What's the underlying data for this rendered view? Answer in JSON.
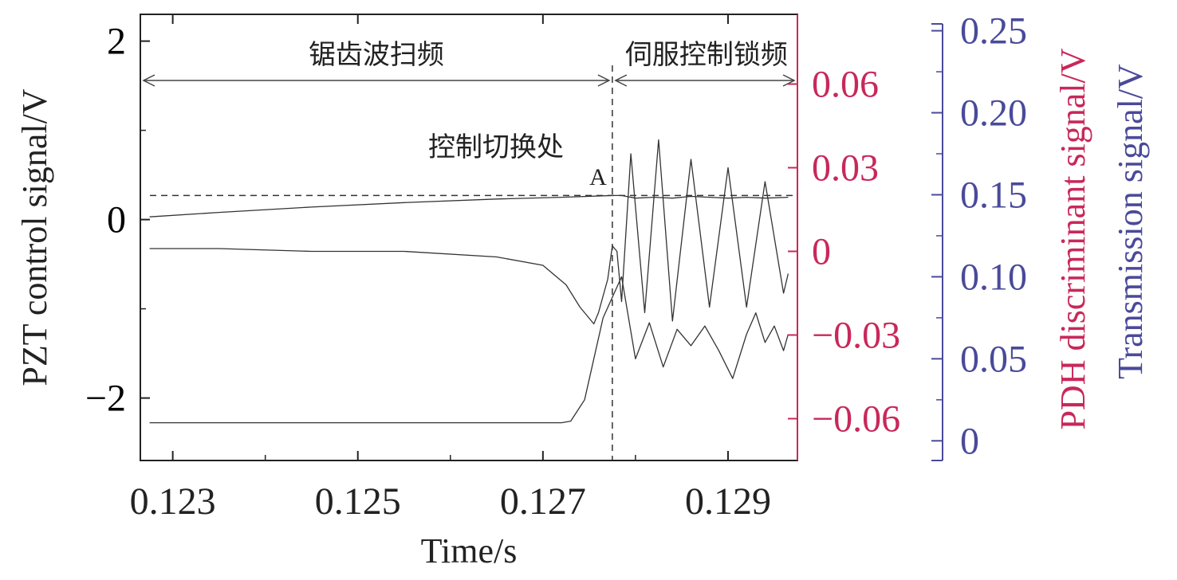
{
  "chart_data": {
    "type": "line",
    "xlabel": "Time/s",
    "x_ticks": [
      "0.123",
      "0.125",
      "0.127",
      "0.129"
    ],
    "x_tick_values": [
      0.123,
      0.125,
      0.127,
      0.129
    ],
    "xlim": [
      0.12265,
      0.12975
    ],
    "grid": false,
    "axes": [
      {
        "id": "left",
        "label": "PZT control signal/V",
        "color": "#000000",
        "ylim": [
          -2.7,
          2.3
        ],
        "ticks": [
          "2",
          "0",
          "−2"
        ],
        "tick_values": [
          2,
          0,
          -2
        ]
      },
      {
        "id": "right1",
        "label": "PDH discriminant signal/V",
        "color": "#c8285a",
        "ylim": [
          -0.075,
          0.085
        ],
        "ticks": [
          "0.06",
          "0.03",
          "0",
          "−0.03",
          "−0.06"
        ],
        "tick_values": [
          0.06,
          0.03,
          0,
          -0.03,
          -0.06
        ]
      },
      {
        "id": "right2",
        "label": "Transmission signal/V",
        "color": "#4a4a9a",
        "ylim": [
          -0.012,
          0.26
        ],
        "ticks": [
          "0.25",
          "0.20",
          "0.15",
          "0.10",
          "0.05",
          "0"
        ],
        "tick_values": [
          0.25,
          0.2,
          0.15,
          0.1,
          0.05,
          0
        ]
      }
    ],
    "series": [
      {
        "axis": "left",
        "color": "#333333",
        "x": [
          0.12275,
          0.1235,
          0.1245,
          0.1255,
          0.1265,
          0.1272,
          0.12775,
          0.12785,
          0.128,
          0.1282,
          0.1284,
          0.1286,
          0.1288,
          0.129,
          0.1292,
          0.1294,
          0.12965
        ],
        "y": [
          0.03,
          0.08,
          0.14,
          0.19,
          0.23,
          0.25,
          0.27,
          0.27,
          0.24,
          0.25,
          0.24,
          0.26,
          0.25,
          0.24,
          0.25,
          0.24,
          0.25
        ]
      },
      {
        "axis": "right1",
        "color": "#333333",
        "x": [
          0.12275,
          0.1235,
          0.1245,
          0.1255,
          0.1265,
          0.127,
          0.12725,
          0.1274,
          0.12755,
          0.1276,
          0.1277,
          0.12775,
          0.1278,
          0.12785,
          0.12795,
          0.1281,
          0.12825,
          0.1284,
          0.1286,
          0.1288,
          0.129,
          0.1292,
          0.1294,
          0.1296,
          0.12965
        ],
        "y": [
          0.001,
          0.001,
          0.0,
          0.0,
          -0.002,
          -0.005,
          -0.012,
          -0.02,
          -0.026,
          -0.022,
          -0.01,
          0.002,
          0.0,
          -0.018,
          0.035,
          -0.022,
          0.04,
          -0.025,
          0.033,
          -0.02,
          0.03,
          -0.02,
          0.025,
          -0.015,
          -0.008
        ]
      },
      {
        "axis": "right2",
        "color": "#333333",
        "x": [
          0.12275,
          0.1235,
          0.1245,
          0.1255,
          0.1265,
          0.1272,
          0.1273,
          0.12745,
          0.12765,
          0.12785,
          0.128,
          0.12815,
          0.1283,
          0.12845,
          0.1286,
          0.12875,
          0.1289,
          0.12905,
          0.1292,
          0.1293,
          0.1294,
          0.1295,
          0.1296,
          0.12965
        ],
        "y": [
          0.011,
          0.011,
          0.011,
          0.011,
          0.011,
          0.011,
          0.012,
          0.025,
          0.075,
          0.1,
          0.05,
          0.072,
          0.045,
          0.068,
          0.058,
          0.07,
          0.055,
          0.038,
          0.065,
          0.078,
          0.06,
          0.07,
          0.055,
          0.065
        ]
      }
    ],
    "annotations": {
      "sweep_label": "锯齿波扫频",
      "lock_label": "伺服控制锁频",
      "switch_label": "控制切换处",
      "point_label": "A",
      "switch_time": 0.12775,
      "reference_level": 0.27
    }
  }
}
